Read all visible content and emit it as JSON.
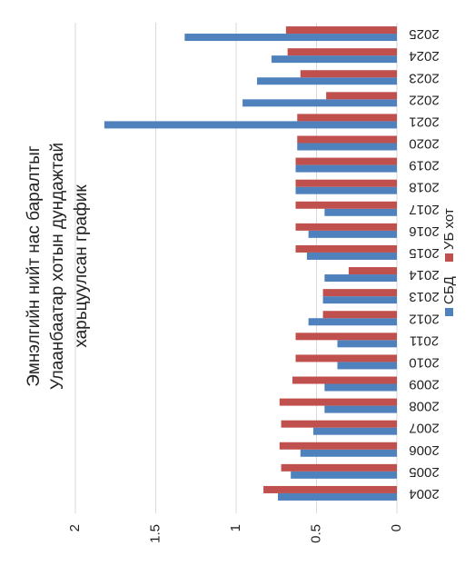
{
  "chart_data": {
    "type": "bar",
    "title": [
      "Эмнэлгийн нийт нас баралтыг",
      "Улаанбаатар хотын дундажтай",
      "харьцуулсан график"
    ],
    "categories": [
      "2004",
      "2005",
      "2006",
      "2007",
      "2008",
      "2009",
      "2010",
      "2011",
      "2012",
      "2013",
      "2014",
      "2015",
      "2016",
      "2017",
      "2018",
      "2019",
      "2020",
      "2021",
      "2022",
      "2023",
      "2024",
      "2025"
    ],
    "series": [
      {
        "name": "СБД",
        "color": "#4f81bd",
        "values": [
          0.74,
          0.66,
          0.6,
          0.52,
          0.45,
          0.45,
          0.37,
          0.37,
          0.55,
          0.46,
          0.45,
          0.56,
          0.55,
          0.45,
          0.63,
          0.63,
          0.62,
          1.82,
          0.96,
          0.87,
          0.78,
          1.32
        ]
      },
      {
        "name": "УБ хот",
        "color": "#c0504d",
        "values": [
          0.83,
          0.72,
          0.73,
          0.72,
          0.73,
          0.65,
          0.63,
          0.63,
          0.46,
          0.46,
          0.3,
          0.63,
          0.63,
          0.63,
          0.63,
          0.63,
          0.62,
          0.62,
          0.44,
          0.6,
          0.68,
          0.69
        ]
      }
    ],
    "ylim": [
      0,
      2
    ],
    "yticks": [
      0,
      0.5,
      1,
      1.5,
      2
    ],
    "grid": true
  }
}
